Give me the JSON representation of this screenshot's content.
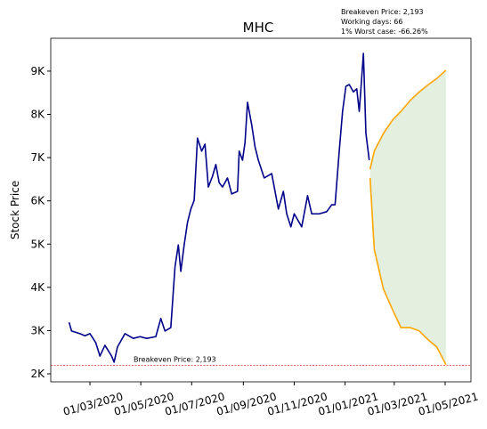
{
  "chart_data": {
    "type": "line",
    "title": "MHC",
    "y_label": "Stock Price",
    "annotations": [
      "Breakeven Price: 2,193",
      "Working days: 66",
      "1% Worst case: -66.26%"
    ],
    "hline": {
      "value": 2193,
      "color": "#e03030",
      "label": "Breakeven Price: 2,193"
    },
    "band_color": "#e3f0e0",
    "series": [
      {
        "color": "#00008b",
        "x": [
          "2020-02-05",
          "2020-02-08",
          "2020-02-18",
          "2020-02-24",
          "2020-03-01",
          "2020-03-08",
          "2020-03-13",
          "2020-03-19",
          "2020-03-27",
          "2020-03-30",
          "2020-04-03",
          "2020-04-12",
          "2020-04-22",
          "2020-04-30",
          "2020-05-08",
          "2020-05-19",
          "2020-05-25",
          "2020-05-30",
          "2020-06-06",
          "2020-06-11",
          "2020-06-15",
          "2020-06-18",
          "2020-06-22",
          "2020-06-26",
          "2020-06-30",
          "2020-07-04",
          "2020-07-08",
          "2020-07-13",
          "2020-07-17",
          "2020-07-21",
          "2020-07-26",
          "2020-07-30",
          "2020-08-03",
          "2020-08-07",
          "2020-08-13",
          "2020-08-18",
          "2020-08-25",
          "2020-08-27",
          "2020-08-31",
          "2020-09-03",
          "2020-09-06",
          "2020-09-11",
          "2020-09-15",
          "2020-09-19",
          "2020-09-26",
          "2020-10-05",
          "2020-10-13",
          "2020-10-19",
          "2020-10-23",
          "2020-10-28",
          "2020-11-01",
          "2020-11-10",
          "2020-11-17",
          "2020-11-22",
          "2020-12-01",
          "2020-12-10",
          "2020-12-16",
          "2020-12-20",
          "2020-12-25",
          "2020-12-29",
          "2021-01-02",
          "2021-01-06",
          "2021-01-11",
          "2021-01-15",
          "2021-01-18",
          "2021-01-20",
          "2021-01-23",
          "2021-01-26",
          "2021-01-30"
        ],
        "values": [
          3190,
          2990,
          2930,
          2880,
          2930,
          2720,
          2410,
          2660,
          2410,
          2270,
          2620,
          2930,
          2820,
          2860,
          2820,
          2860,
          3280,
          2990,
          3070,
          4470,
          4980,
          4370,
          4980,
          5500,
          5810,
          6010,
          7450,
          7150,
          7310,
          6320,
          6570,
          6840,
          6420,
          6320,
          6530,
          6160,
          6220,
          7150,
          6940,
          7350,
          8280,
          7760,
          7250,
          6940,
          6530,
          6630,
          5810,
          6220,
          5700,
          5400,
          5700,
          5400,
          6120,
          5700,
          5700,
          5750,
          5910,
          5910,
          7150,
          8070,
          8650,
          8690,
          8520,
          8590,
          8070,
          8590,
          9410,
          7560,
          6940
        ]
      },
      {
        "color": "#ffa500",
        "x": [
          "2021-01-31",
          "2021-02-05",
          "2021-02-16",
          "2021-02-27",
          "2021-03-09",
          "2021-03-20",
          "2021-03-31",
          "2021-04-11",
          "2021-04-21",
          "2021-05-02"
        ],
        "values": [
          6730,
          7150,
          7560,
          7870,
          8070,
          8320,
          8520,
          8690,
          8830,
          9020
        ]
      },
      {
        "color": "#ffa500",
        "x": [
          "2021-01-31",
          "2021-02-05",
          "2021-02-16",
          "2021-02-27",
          "2021-03-09",
          "2021-03-20",
          "2021-03-31",
          "2021-04-11",
          "2021-04-21",
          "2021-05-02"
        ],
        "values": [
          6530,
          4880,
          3960,
          3480,
          3070,
          3070,
          2990,
          2780,
          2620,
          2210
        ]
      }
    ],
    "xlim": [
      "2020-01-14",
      "2021-06-01"
    ],
    "xticks": [
      {
        "value": "2020-03-01",
        "label": "01/03/2020"
      },
      {
        "value": "2020-05-01",
        "label": "01/05/2020"
      },
      {
        "value": "2020-07-01",
        "label": "01/07/2020"
      },
      {
        "value": "2020-09-01",
        "label": "01/09/2020"
      },
      {
        "value": "2020-11-01",
        "label": "01/11/2020"
      },
      {
        "value": "2021-01-01",
        "label": "01/01/2021"
      },
      {
        "value": "2021-03-01",
        "label": "01/03/2021"
      },
      {
        "value": "2021-05-01",
        "label": "01/05/2021"
      }
    ],
    "ylim": [
      1815,
      9760
    ],
    "yticks": [
      {
        "value": 2000,
        "label": "2K"
      },
      {
        "value": 3000,
        "label": "3K"
      },
      {
        "value": 4000,
        "label": "4K"
      },
      {
        "value": 5000,
        "label": "5K"
      },
      {
        "value": 6000,
        "label": "6K"
      },
      {
        "value": 7000,
        "label": "7K"
      },
      {
        "value": 8000,
        "label": "8K"
      },
      {
        "value": 9000,
        "label": "9K"
      }
    ]
  }
}
